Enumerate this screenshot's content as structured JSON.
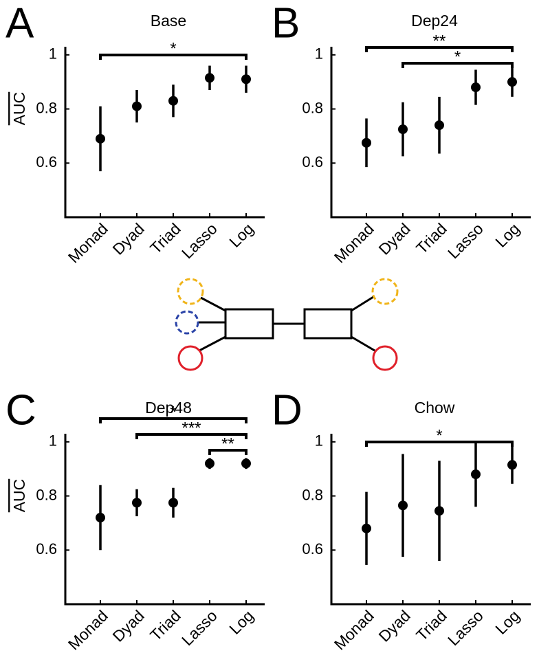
{
  "chart_data": [
    {
      "type": "errorbar",
      "panel": "A",
      "title": "Base",
      "ylabel": "AUC",
      "categories": [
        "Monad",
        "Dyad",
        "Triad",
        "Lasso",
        "Log"
      ],
      "values": [
        0.69,
        0.81,
        0.83,
        0.915,
        0.91
      ],
      "errors": [
        0.12,
        0.06,
        0.06,
        0.045,
        0.05
      ],
      "ylim": [
        0.4,
        1.03
      ],
      "yticks": [
        0.6,
        0.8,
        1
      ],
      "brackets": [
        {
          "label": "*",
          "span": [
            0,
            4
          ]
        }
      ]
    },
    {
      "type": "errorbar",
      "panel": "B",
      "title": "Dep24",
      "categories": [
        "Monad",
        "Dyad",
        "Triad",
        "Lasso",
        "Log"
      ],
      "values": [
        0.675,
        0.725,
        0.74,
        0.88,
        0.9
      ],
      "errors": [
        0.09,
        0.1,
        0.105,
        0.065,
        0.055
      ],
      "ylim": [
        0.4,
        1.03
      ],
      "yticks": [
        0.6,
        0.8,
        1
      ],
      "brackets": [
        {
          "label": "**",
          "span": [
            0,
            4
          ]
        },
        {
          "label": "*",
          "span": [
            1,
            4
          ]
        }
      ]
    },
    {
      "type": "errorbar",
      "panel": "C",
      "title": "Dep48",
      "ylabel": "AUC",
      "categories": [
        "Monad",
        "Dyad",
        "Triad",
        "Lasso",
        "Log"
      ],
      "values": [
        0.72,
        0.775,
        0.775,
        0.92,
        0.92
      ],
      "errors": [
        0.12,
        0.05,
        0.055,
        0.02,
        0.02
      ],
      "ylim": [
        0.4,
        1.03
      ],
      "yticks": [
        0.6,
        0.8,
        1
      ],
      "brackets": [
        {
          "label": "*",
          "span": [
            0,
            4
          ]
        },
        {
          "label": "***",
          "span": [
            1,
            4
          ]
        },
        {
          "label": "**",
          "span": [
            3,
            4
          ]
        }
      ]
    },
    {
      "type": "errorbar",
      "panel": "D",
      "title": "Chow",
      "categories": [
        "Monad",
        "Dyad",
        "Triad",
        "Lasso",
        "Log"
      ],
      "values": [
        0.68,
        0.765,
        0.745,
        0.88,
        0.915
      ],
      "errors": [
        0.135,
        0.19,
        0.185,
        0.12,
        0.07
      ],
      "ylim": [
        0.4,
        1.03
      ],
      "yticks": [
        0.6,
        0.8,
        1
      ],
      "brackets": [
        {
          "label": "*",
          "span": [
            0,
            4
          ]
        }
      ]
    }
  ]
}
